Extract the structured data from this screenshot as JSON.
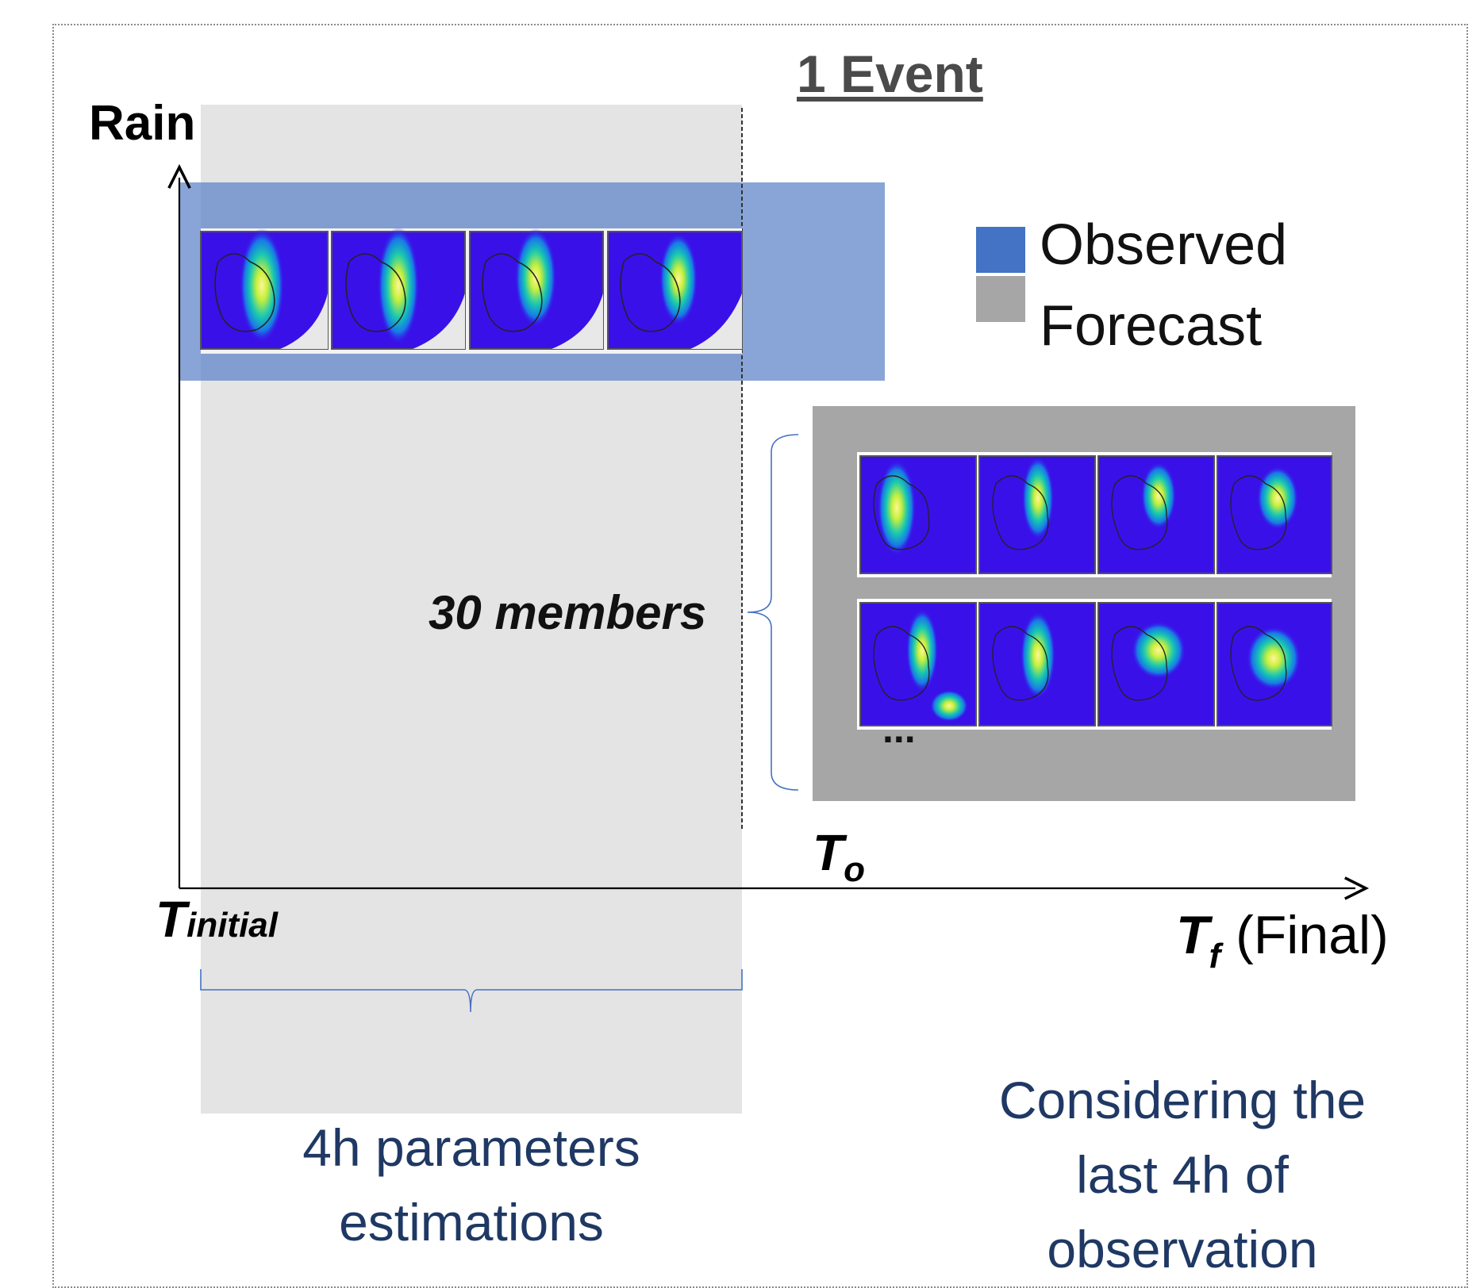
{
  "title": "1 Event",
  "y_axis_label": "Rain",
  "legend": [
    {
      "label": "Observed",
      "color": "#4472c4"
    },
    {
      "label": "Forecast",
      "color": "#a6a6a6"
    }
  ],
  "members_label": "30 members",
  "ellipsis": "...",
  "t_initial": {
    "main": "T",
    "sub": "initial"
  },
  "t_zero": {
    "main": "T",
    "sub": "o"
  },
  "t_final": {
    "main": "T",
    "sub": "f",
    "suffix": "(Final)"
  },
  "left_caption": [
    "4h parameters",
    "estimations"
  ],
  "right_caption": [
    "Considering the",
    "last 4h of",
    "observation"
  ],
  "colors": {
    "window": "#e4e4e4",
    "observed_band": "#7b9bd3",
    "forecast_panel": "#a6a6a6",
    "radar_bg": "#3a10e8",
    "caption": "#1f3864"
  }
}
